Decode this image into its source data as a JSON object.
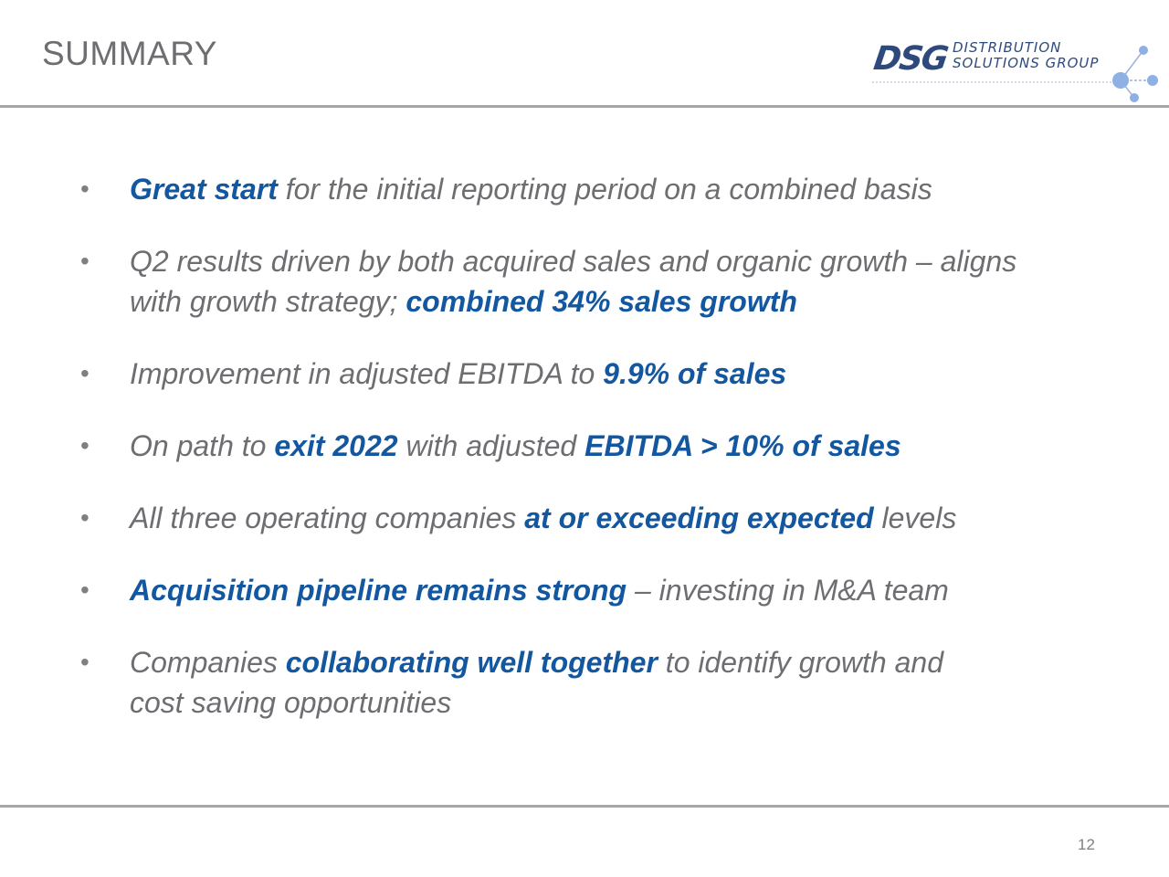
{
  "slide": {
    "title": "SUMMARY",
    "page_number": "12",
    "colors": {
      "accent": "#1257a0",
      "text": "#6d6e71",
      "rule": "#a6a6a6",
      "logo": "#2e4a7d",
      "logo_dots": "#8fb0e3"
    }
  },
  "logo": {
    "mark": "DSG",
    "line1": "DISTRIBUTION",
    "line2": "SOLUTIONS GROUP"
  },
  "bullets": [
    {
      "segments": [
        {
          "text": "Great start",
          "hl": true
        },
        {
          "text": " for the initial reporting period on a combined basis",
          "hl": false
        }
      ]
    },
    {
      "segments": [
        {
          "text": "Q2 results driven by both acquired sales and organic growth – aligns with growth strategy; ",
          "hl": false
        },
        {
          "text": "combined 34% sales growth",
          "hl": true
        }
      ]
    },
    {
      "segments": [
        {
          "text": "Improvement in adjusted EBITDA to ",
          "hl": false
        },
        {
          "text": "9.9% of sales",
          "hl": true
        }
      ]
    },
    {
      "segments": [
        {
          "text": "On path to ",
          "hl": false
        },
        {
          "text": "exit 2022",
          "hl": true
        },
        {
          "text": " with adjusted ",
          "hl": false
        },
        {
          "text": "EBITDA > 10% of sales",
          "hl": true
        }
      ]
    },
    {
      "segments": [
        {
          "text": "All three operating companies ",
          "hl": false
        },
        {
          "text": "at or exceeding expected",
          "hl": true
        },
        {
          "text": " levels",
          "hl": false
        }
      ]
    },
    {
      "segments": [
        {
          "text": "Acquisition pipeline remains strong",
          "hl": true
        },
        {
          "text": " – investing in M&A team",
          "hl": false
        }
      ]
    },
    {
      "segments": [
        {
          "text": "Companies ",
          "hl": false
        },
        {
          "text": "collaborating well together",
          "hl": true
        },
        {
          "text": " to identify growth and cost saving opportunities",
          "hl": false
        }
      ]
    }
  ]
}
